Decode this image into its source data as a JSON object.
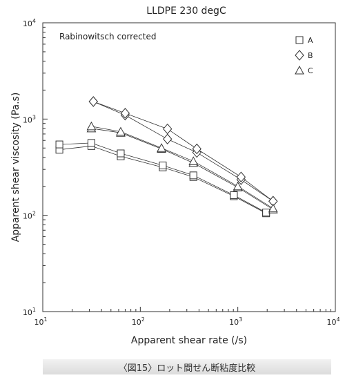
{
  "chart_data": {
    "type": "scatter",
    "title": "LLDPE 230 degC",
    "annotation": "Rabinowitsch corrected",
    "xlabel": "Apparent shear rate (/s)",
    "ylabel": "Apparent shear viscosity (Pa.s)",
    "xscale": "log",
    "yscale": "log",
    "xlim": [
      10,
      10000
    ],
    "ylim": [
      10,
      10000
    ],
    "x_ticks": [
      {
        "base": "10",
        "exp": "1"
      },
      {
        "base": "10",
        "exp": "2"
      },
      {
        "base": "10",
        "exp": "3"
      },
      {
        "base": "10",
        "exp": "4"
      }
    ],
    "y_ticks": [
      {
        "base": "10",
        "exp": "1"
      },
      {
        "base": "10",
        "exp": "2"
      },
      {
        "base": "10",
        "exp": "3"
      },
      {
        "base": "10",
        "exp": "4"
      }
    ],
    "legend_position": "top-right",
    "grid": false,
    "series": [
      {
        "name": "A",
        "marker": "square",
        "lines": [
          [
            [
              14.8,
              480
            ],
            [
              31.5,
              525
            ],
            [
              63,
              410
            ],
            [
              170,
              315
            ],
            [
              350,
              250
            ],
            [
              910,
              158
            ],
            [
              1950,
              105
            ]
          ],
          [
            [
              14.8,
              545
            ],
            [
              31.5,
              565
            ],
            [
              63,
              440
            ],
            [
              170,
              330
            ],
            [
              350,
              260
            ],
            [
              910,
              162
            ],
            [
              1950,
              107
            ]
          ]
        ]
      },
      {
        "name": "B",
        "marker": "diamond",
        "lines": [
          [
            [
              33,
              1520
            ],
            [
              70,
              1100
            ],
            [
              190,
              620
            ],
            [
              380,
              450
            ],
            [
              1080,
              235
            ],
            [
              2300,
              140
            ]
          ],
          [
            [
              33,
              1520
            ],
            [
              70,
              1150
            ],
            [
              190,
              790
            ],
            [
              380,
              490
            ],
            [
              1080,
              250
            ],
            [
              2300,
              140
            ]
          ]
        ]
      },
      {
        "name": "C",
        "marker": "triangle",
        "lines": [
          [
            [
              31.5,
              800
            ],
            [
              63,
              720
            ],
            [
              165,
              490
            ],
            [
              350,
              350
            ],
            [
              1000,
              195
            ],
            [
              2300,
              115
            ]
          ],
          [
            [
              31.5,
              840
            ],
            [
              63,
              740
            ],
            [
              165,
              500
            ],
            [
              350,
              365
            ],
            [
              1000,
              200
            ],
            [
              2300,
              118
            ]
          ]
        ]
      }
    ]
  },
  "caption": "〈図15〉ロット間せん断粘度比較"
}
